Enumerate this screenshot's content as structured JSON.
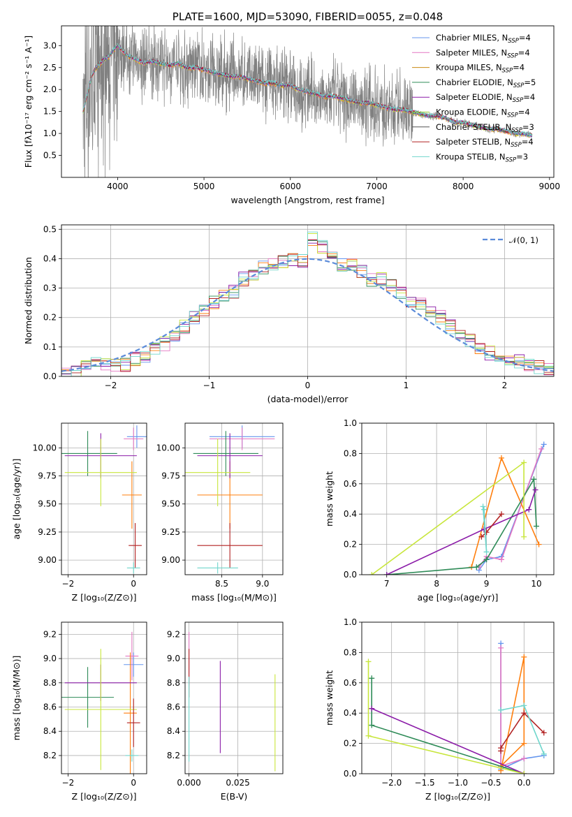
{
  "colors": [
    "#6495ed",
    "#e377c2",
    "#ff7f0e",
    "#2e8b57",
    "#8b1ca8",
    "#8b0000",
    "#555555",
    "#b22222",
    "#6fd6cc"
  ],
  "chart_data": [
    {
      "id": "spectrum",
      "type": "line",
      "title": "PLATE=1600, MJD=53090, FIBERID=0055, z=0.048",
      "xlabel": "wavelength [Angstrom, rest frame]",
      "ylabel": "Flux [fλ10⁻¹⁷ erg cm⁻² s⁻¹ A⁻¹]",
      "xlim": [
        3350,
        9050
      ],
      "ylim": [
        0.0,
        3.45
      ],
      "xticks": [
        4000,
        5000,
        6000,
        7000,
        8000,
        9000
      ],
      "yticks": [
        0.5,
        1.0,
        1.5,
        2.0,
        2.5,
        3.0
      ],
      "xtick_labels": [
        "4000",
        "5000",
        "6000",
        "7000",
        "8000",
        "9000"
      ],
      "ytick_labels": [
        "0.5",
        "1.0",
        "1.5",
        "2.0",
        "2.5",
        "3.0"
      ],
      "grid": false,
      "legend_position": "right",
      "legend": [
        {
          "name": "Chabrier MILES, N",
          "sub": "SSP",
          "suffix": "=4",
          "color": "#6495ed"
        },
        {
          "name": "Salpeter MILES, N",
          "sub": "SSP",
          "suffix": "=4",
          "color": "#e377c2"
        },
        {
          "name": "Kroupa MILES, N",
          "sub": "SSP",
          "suffix": "=4",
          "color": "#c98a12"
        },
        {
          "name": "Chabrier ELODIE, N",
          "sub": "SSP",
          "suffix": "=5",
          "color": "#2e8b57"
        },
        {
          "name": "Salpeter ELODIE, N",
          "sub": "SSP",
          "suffix": "=4",
          "color": "#8b1ca8"
        },
        {
          "name": "Kroupa ELODIE, N",
          "sub": "SSP",
          "suffix": "=4",
          "color": "#9acd32"
        },
        {
          "name": "Chabrier STELIB, N",
          "sub": "SSP",
          "suffix": "=3",
          "color": "#555555"
        },
        {
          "name": "Salpeter STELIB, N",
          "sub": "SSP",
          "suffix": "=4",
          "color": "#b22222"
        },
        {
          "name": "Kroupa STELIB, N",
          "sub": "SSP",
          "suffix": "=3",
          "color": "#6fd6cc"
        }
      ],
      "model_x": [
        3600,
        3650,
        3700,
        3750,
        3800,
        3850,
        3900,
        3950,
        4000,
        4100,
        4200,
        4300,
        4400,
        4500,
        4600,
        4700,
        4800,
        4900,
        5000,
        5100,
        5200,
        5300,
        5400,
        5500,
        5600,
        5700,
        5800,
        5900,
        6000,
        6100,
        6200,
        6300,
        6400,
        6500,
        6600,
        6700,
        6800,
        6900,
        7000,
        7100,
        7200,
        7300,
        7400,
        7500,
        7600,
        7700,
        7800,
        7900,
        8000,
        8100,
        8200,
        8300,
        8400,
        8500,
        8600,
        8700,
        8800
      ],
      "model_y": [
        1.5,
        1.9,
        2.3,
        2.5,
        2.6,
        2.7,
        2.75,
        2.9,
        3.0,
        2.8,
        2.7,
        2.6,
        2.65,
        2.6,
        2.55,
        2.6,
        2.5,
        2.5,
        2.45,
        2.4,
        2.35,
        2.3,
        2.3,
        2.25,
        2.2,
        2.15,
        2.15,
        2.1,
        2.1,
        2.0,
        1.95,
        1.9,
        1.85,
        1.85,
        1.8,
        1.75,
        1.7,
        1.7,
        1.65,
        1.6,
        1.55,
        1.55,
        1.5,
        1.45,
        1.4,
        1.4,
        1.35,
        1.25,
        1.25,
        1.2,
        1.15,
        1.1,
        1.1,
        1.05,
        1.0,
        1.0,
        0.95
      ],
      "noise_range": [
        3600,
        7420
      ]
    },
    {
      "id": "residuals",
      "type": "line",
      "xlabel": "(data-model)/error",
      "ylabel": "Normed distribution",
      "xlim": [
        -2.5,
        2.5
      ],
      "ylim": [
        0.0,
        0.515
      ],
      "xticks": [
        -2,
        -1,
        0,
        1,
        2
      ],
      "yticks": [
        0.0,
        0.1,
        0.2,
        0.3,
        0.4,
        0.5
      ],
      "xtick_labels": [
        "−2",
        "−1",
        "0",
        "1",
        "2"
      ],
      "ytick_labels": [
        "0.0",
        "0.1",
        "0.2",
        "0.3",
        "0.4",
        "0.5"
      ],
      "grid": true,
      "legend_position": "top-right",
      "legend": [
        {
          "name": "𝒩(0, 1)",
          "color": "#5b8bd9"
        }
      ],
      "bins": [
        -2.5,
        -2.4,
        -2.3,
        -2.2,
        -2.1,
        -2.0,
        -1.9,
        -1.8,
        -1.7,
        -1.6,
        -1.5,
        -1.4,
        -1.3,
        -1.2,
        -1.1,
        -1.0,
        -0.9,
        -0.8,
        -0.7,
        -0.6,
        -0.5,
        -0.4,
        -0.3,
        -0.2,
        -0.1,
        0.0,
        0.1,
        0.2,
        0.3,
        0.4,
        0.5,
        0.6,
        0.7,
        0.8,
        0.9,
        1.0,
        1.1,
        1.2,
        1.3,
        1.4,
        1.5,
        1.6,
        1.7,
        1.8,
        1.9,
        2.0,
        2.1,
        2.2,
        2.3,
        2.4
      ],
      "hist": [
        0.015,
        0.02,
        0.03,
        0.05,
        0.04,
        0.035,
        0.04,
        0.06,
        0.07,
        0.09,
        0.11,
        0.14,
        0.17,
        0.2,
        0.22,
        0.25,
        0.27,
        0.29,
        0.33,
        0.35,
        0.37,
        0.38,
        0.39,
        0.4,
        0.39,
        0.47,
        0.44,
        0.42,
        0.38,
        0.38,
        0.36,
        0.33,
        0.33,
        0.31,
        0.28,
        0.26,
        0.25,
        0.22,
        0.2,
        0.17,
        0.14,
        0.12,
        0.09,
        0.08,
        0.07,
        0.06,
        0.05,
        0.04,
        0.03,
        0.025
      ]
    },
    {
      "id": "age_vs_z",
      "type": "scatter",
      "xlabel": "Z [log₁₀(Z/Z⊙)]",
      "ylabel": "age  [log₁₀(age/yr)]",
      "xlim": [
        -2.2,
        0.4
      ],
      "ylim": [
        8.87,
        10.22
      ],
      "xticks": [
        -2,
        0
      ],
      "yticks": [
        9.0,
        9.25,
        9.5,
        9.75,
        10.0
      ],
      "xtick_labels": [
        "−2",
        "0"
      ],
      "ytick_labels": [
        "9.00",
        "9.25",
        "9.50",
        "9.75",
        "10.00"
      ],
      "grid": true,
      "points": [
        {
          "x": 0.1,
          "y": 10.1,
          "xerr": 0.3,
          "yerr": 0.1,
          "c": 0
        },
        {
          "x": 0.0,
          "y": 10.08,
          "xerr": 0.3,
          "yerr": 0.1,
          "c": 1
        },
        {
          "x": -0.05,
          "y": 9.58,
          "xerr": 0.3,
          "yerr": 0.3,
          "c": 2
        },
        {
          "x": -1.4,
          "y": 9.95,
          "xerr": 0.9,
          "yerr": 0.2,
          "c": 3
        },
        {
          "x": -1.0,
          "y": 9.93,
          "xerr": 1.1,
          "yerr": 0.2,
          "c": 4
        },
        {
          "x": -1.0,
          "y": 9.78,
          "xerr": 1.1,
          "yerr": 0.3,
          "c": 5
        },
        {
          "x": 0.05,
          "y": 9.13,
          "xerr": 0.2,
          "yerr": 0.2,
          "c": 7
        },
        {
          "x": 0.0,
          "y": 8.93,
          "xerr": 0.2,
          "yerr": 0.05,
          "c": 8
        }
      ]
    },
    {
      "id": "age_vs_mass",
      "type": "scatter",
      "xlabel": "mass [log₁₀(M/M⊙)]",
      "ylabel": "",
      "xlim": [
        8.05,
        9.25
      ],
      "ylim": [
        8.87,
        10.22
      ],
      "xticks": [
        8.5,
        9.0
      ],
      "yticks": [
        9.0,
        9.25,
        9.5,
        9.75,
        10.0
      ],
      "xtick_labels": [
        "8.5",
        "9.0"
      ],
      "ytick_labels": [
        "9.00",
        "9.25",
        "9.50",
        "9.75",
        "10.00"
      ],
      "grid": true,
      "points": [
        {
          "x": 8.75,
          "y": 10.1,
          "xerr": 0.4,
          "yerr": 0.1,
          "c": 0
        },
        {
          "x": 8.75,
          "y": 10.08,
          "xerr": 0.4,
          "yerr": 0.1,
          "c": 1
        },
        {
          "x": 8.6,
          "y": 9.58,
          "xerr": 0.4,
          "yerr": 0.3,
          "c": 2
        },
        {
          "x": 8.55,
          "y": 9.95,
          "xerr": 0.4,
          "yerr": 0.2,
          "c": 3
        },
        {
          "x": 8.6,
          "y": 9.93,
          "xerr": 0.4,
          "yerr": 0.2,
          "c": 4
        },
        {
          "x": 8.45,
          "y": 9.78,
          "xerr": 0.4,
          "yerr": 0.3,
          "c": 5
        },
        {
          "x": 8.6,
          "y": 9.13,
          "xerr": 0.4,
          "yerr": 0.2,
          "c": 7
        },
        {
          "x": 8.45,
          "y": 8.93,
          "xerr": 0.25,
          "yerr": 0.05,
          "c": 8
        }
      ]
    },
    {
      "id": "weight_vs_age",
      "type": "line",
      "xlabel": "age  [log₁₀(age/yr)]",
      "ylabel": "mass weight",
      "xlim": [
        6.5,
        10.35
      ],
      "ylim": [
        0.0,
        1.0
      ],
      "xticks": [
        7,
        8,
        9,
        10
      ],
      "yticks": [
        0.0,
        0.2,
        0.4,
        0.6,
        0.8,
        1.0
      ],
      "xtick_labels": [
        "7",
        "8",
        "9",
        "10"
      ],
      "ytick_labels": [
        "0.0",
        "0.2",
        "0.4",
        "0.6",
        "0.8",
        "1.0"
      ],
      "grid": true,
      "series": [
        {
          "c": 0,
          "x": [
            8.85,
            9.0,
            9.3,
            10.15
          ],
          "y": [
            0.03,
            0.1,
            0.12,
            0.86
          ]
        },
        {
          "c": 1,
          "x": [
            8.85,
            9.0,
            9.3,
            10.1
          ],
          "y": [
            0.05,
            0.12,
            0.1,
            0.83
          ]
        },
        {
          "c": 2,
          "x": [
            8.7,
            9.3,
            10.05
          ],
          "y": [
            0.05,
            0.77,
            0.2
          ]
        },
        {
          "c": 3,
          "x": [
            7.0,
            8.8,
            9.0,
            9.95,
            10.0
          ],
          "y": [
            0.0,
            0.05,
            0.1,
            0.63,
            0.32
          ]
        },
        {
          "c": 4,
          "x": [
            7.0,
            8.95,
            9.85,
            9.98
          ],
          "y": [
            0.0,
            0.3,
            0.43,
            0.56
          ]
        },
        {
          "c": 5,
          "x": [
            6.7,
            9.75,
            9.75
          ],
          "y": [
            0.0,
            0.74,
            0.25
          ]
        },
        {
          "c": 7,
          "x": [
            8.9,
            9.0,
            9.3
          ],
          "y": [
            0.25,
            0.28,
            0.4
          ]
        },
        {
          "c": 8,
          "x": [
            8.95,
            9.0,
            8.93
          ],
          "y": [
            0.43,
            0.15,
            0.45
          ]
        }
      ]
    },
    {
      "id": "mass_vs_z",
      "type": "scatter",
      "xlabel": "Z [log₁₀(Z/Z⊙)]",
      "ylabel": "mass [log₁₀(M/M⊙)]",
      "xlim": [
        -2.2,
        0.4
      ],
      "ylim": [
        8.05,
        9.3
      ],
      "xticks": [
        -2,
        0
      ],
      "yticks": [
        8.2,
        8.4,
        8.6,
        8.8,
        9.0,
        9.2
      ],
      "xtick_labels": [
        "−2",
        "0"
      ],
      "ytick_labels": [
        "8.2",
        "8.4",
        "8.6",
        "8.8",
        "9.0",
        "9.2"
      ],
      "grid": true,
      "points": [
        {
          "x": 0.0,
          "y": 8.95,
          "xerr": 0.3,
          "yerr": 0.1,
          "c": 0
        },
        {
          "x": -0.05,
          "y": 9.02,
          "xerr": 0.2,
          "yerr": 0.2,
          "c": 1
        },
        {
          "x": -0.1,
          "y": 8.55,
          "xerr": 0.2,
          "yerr": 0.5,
          "c": 2
        },
        {
          "x": -1.4,
          "y": 8.68,
          "xerr": 0.8,
          "yerr": 0.25,
          "c": 3
        },
        {
          "x": -1.0,
          "y": 8.8,
          "xerr": 1.1,
          "yerr": 0.15,
          "c": 4
        },
        {
          "x": -1.0,
          "y": 8.58,
          "xerr": 1.1,
          "yerr": 0.5,
          "c": 5
        },
        {
          "x": 0.0,
          "y": 8.47,
          "xerr": 0.2,
          "yerr": 0.2,
          "c": 7
        },
        {
          "x": -0.05,
          "y": 8.2,
          "xerr": 0.2,
          "yerr": 0.05,
          "c": 8
        }
      ]
    },
    {
      "id": "mass_vs_ebv",
      "type": "scatter",
      "xlabel": "E(B-V)",
      "ylabel": "",
      "xlim": [
        -0.002,
        0.048
      ],
      "ylim": [
        8.05,
        9.3
      ],
      "xticks": [
        0.0,
        0.025
      ],
      "yticks": [
        8.2,
        8.4,
        8.6,
        8.8,
        9.0,
        9.2
      ],
      "xtick_labels": [
        "0.000",
        "0.025"
      ],
      "ytick_labels": [
        "8.2",
        "8.4",
        "8.6",
        "8.8",
        "9.0",
        "9.2"
      ],
      "grid": true,
      "points": [
        {
          "x": 0.0,
          "y": 9.0,
          "xerr": 0.0,
          "yerr": 0.22,
          "c": 1
        },
        {
          "x": 0.0,
          "y": 8.88,
          "xerr": 0.0,
          "yerr": 0.2,
          "c": 7
        },
        {
          "x": 0.016,
          "y": 8.6,
          "xerr": 0.0,
          "yerr": 0.38,
          "c": 4
        },
        {
          "x": 0.0,
          "y": 8.5,
          "xerr": 0.0,
          "yerr": 0.35,
          "c": 8
        },
        {
          "x": 0.044,
          "y": 8.47,
          "xerr": 0.0,
          "yerr": 0.4,
          "c": 5
        }
      ]
    },
    {
      "id": "weight_vs_z",
      "type": "line",
      "xlabel": "Z [log₁₀(Z/Z⊙)]",
      "ylabel": "mass weight",
      "xlim": [
        -2.45,
        0.45
      ],
      "ylim": [
        0.0,
        1.0
      ],
      "xticks": [
        -2.0,
        -1.5,
        -1.0,
        -0.5,
        0.0
      ],
      "yticks": [
        0.0,
        0.2,
        0.4,
        0.6,
        0.8,
        1.0
      ],
      "xtick_labels": [
        "−2.0",
        "−1.5",
        "−1.0",
        "−0.5",
        "0.0"
      ],
      "ytick_labels": [
        "0.0",
        "0.2",
        "0.4",
        "0.6",
        "0.8",
        "1.0"
      ],
      "grid": true,
      "series": [
        {
          "c": 0,
          "x": [
            -0.35,
            -0.35,
            0.0,
            0.3
          ],
          "y": [
            0.86,
            0.03,
            0.1,
            0.12
          ]
        },
        {
          "c": 1,
          "x": [
            -0.35,
            -0.35,
            0.0
          ],
          "y": [
            0.83,
            0.05,
            0.1
          ]
        },
        {
          "c": 2,
          "x": [
            -0.35,
            0.0,
            0.0,
            -0.35
          ],
          "y": [
            0.02,
            0.77,
            0.2,
            0.05
          ]
        },
        {
          "c": 3,
          "x": [
            -2.3,
            -2.3,
            0.0
          ],
          "y": [
            0.63,
            0.32,
            0.0
          ]
        },
        {
          "c": 4,
          "x": [
            -2.3,
            0.0
          ],
          "y": [
            0.43,
            0.0
          ]
        },
        {
          "c": 5,
          "x": [
            -2.35,
            -2.35,
            0.0
          ],
          "y": [
            0.74,
            0.25,
            0.0
          ]
        },
        {
          "c": 7,
          "x": [
            -0.35,
            -0.35,
            0.0,
            0.3
          ],
          "y": [
            0.15,
            0.17,
            0.4,
            0.27
          ]
        },
        {
          "c": 8,
          "x": [
            0.3,
            0.0,
            -0.35
          ],
          "y": [
            0.13,
            0.45,
            0.42
          ]
        }
      ]
    }
  ]
}
